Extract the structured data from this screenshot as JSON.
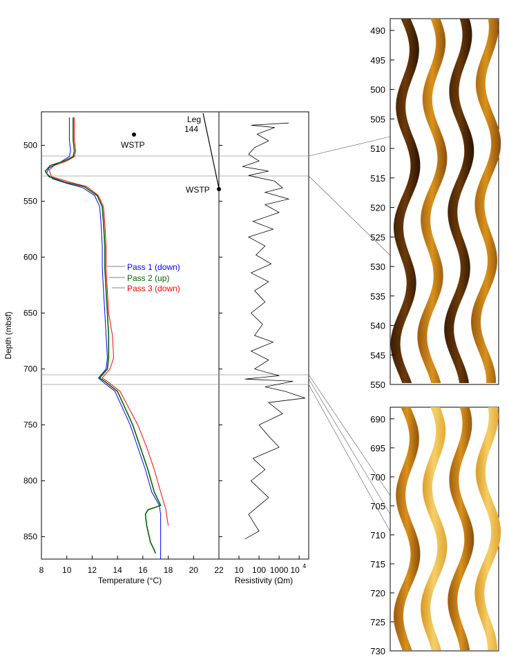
{
  "chart_data": [
    {
      "type": "line",
      "panel": "temperature",
      "xlabel": "Temperature (°C)",
      "ylabel": "Depth (mbsf)",
      "xlim": [
        8,
        22
      ],
      "ylim": [
        870,
        470
      ],
      "x_ticks": [
        "8",
        "10",
        "12",
        "14",
        "16",
        "18",
        "20",
        "22"
      ],
      "y_ticks": [
        "500",
        "550",
        "600",
        "650",
        "700",
        "750",
        "800",
        "850"
      ],
      "series": [
        {
          "name": "Pass 1 (down)",
          "color": "#0000ff",
          "points": [
            [
              10.2,
              475
            ],
            [
              10.2,
              485
            ],
            [
              10.2,
              495
            ],
            [
              10.3,
              505
            ],
            [
              10.2,
              510
            ],
            [
              9.5,
              515
            ],
            [
              8.6,
              520
            ],
            [
              8.4,
              525
            ],
            [
              8.9,
              530
            ],
            [
              10.0,
              534
            ],
            [
              11.3,
              538
            ],
            [
              12.2,
              545
            ],
            [
              12.6,
              555
            ],
            [
              12.7,
              570
            ],
            [
              12.8,
              590
            ],
            [
              12.8,
              610
            ],
            [
              12.9,
              630
            ],
            [
              13.0,
              650
            ],
            [
              13.1,
              670
            ],
            [
              13.2,
              690
            ],
            [
              13.1,
              700
            ],
            [
              12.5,
              708
            ],
            [
              12.9,
              712
            ],
            [
              13.8,
              720
            ],
            [
              14.4,
              735
            ],
            [
              15.0,
              750
            ],
            [
              15.6,
              770
            ],
            [
              16.2,
              790
            ],
            [
              16.7,
              810
            ],
            [
              17.3,
              822
            ],
            [
              17.4,
              830
            ],
            [
              17.4,
              850
            ],
            [
              17.4,
              870
            ]
          ]
        },
        {
          "name": "Pass 2 (up)",
          "color": "#006400",
          "points": [
            [
              10.5,
              475
            ],
            [
              10.5,
              485
            ],
            [
              10.5,
              495
            ],
            [
              10.6,
              505
            ],
            [
              10.5,
              510
            ],
            [
              9.8,
              514
            ],
            [
              8.7,
              518
            ],
            [
              8.3,
              523
            ],
            [
              8.6,
              528
            ],
            [
              9.9,
              533
            ],
            [
              11.4,
              537
            ],
            [
              12.4,
              545
            ],
            [
              12.8,
              555
            ],
            [
              12.9,
              570
            ],
            [
              13.0,
              590
            ],
            [
              13.0,
              610
            ],
            [
              13.1,
              630
            ],
            [
              13.2,
              650
            ],
            [
              13.3,
              670
            ],
            [
              13.3,
              690
            ],
            [
              13.2,
              700
            ],
            [
              12.6,
              708
            ],
            [
              13.1,
              712
            ],
            [
              14.0,
              720
            ],
            [
              14.6,
              735
            ],
            [
              15.2,
              750
            ],
            [
              15.8,
              770
            ],
            [
              16.4,
              790
            ],
            [
              16.9,
              810
            ],
            [
              17.4,
              822
            ],
            [
              16.4,
              826
            ],
            [
              16.2,
              830
            ],
            [
              16.3,
              840
            ],
            [
              16.6,
              855
            ],
            [
              16.9,
              862
            ],
            [
              17.0,
              865
            ]
          ]
        },
        {
          "name": "Pass 3 (down)",
          "color": "#ff0000",
          "points": [
            [
              10.6,
              475
            ],
            [
              10.6,
              485
            ],
            [
              10.6,
              495
            ],
            [
              10.7,
              505
            ],
            [
              10.6,
              510
            ],
            [
              10.0,
              514
            ],
            [
              9.0,
              518
            ],
            [
              8.6,
              522
            ],
            [
              8.8,
              528
            ],
            [
              10.3,
              533
            ],
            [
              11.6,
              537
            ],
            [
              12.5,
              545
            ],
            [
              12.9,
              555
            ],
            [
              13.0,
              570
            ],
            [
              13.1,
              590
            ],
            [
              13.1,
              610
            ],
            [
              13.2,
              630
            ],
            [
              13.3,
              650
            ],
            [
              13.6,
              670
            ],
            [
              13.7,
              690
            ],
            [
              13.4,
              700
            ],
            [
              12.8,
              708
            ],
            [
              13.3,
              712
            ],
            [
              14.2,
              720
            ],
            [
              14.9,
              735
            ],
            [
              15.6,
              750
            ],
            [
              16.3,
              770
            ],
            [
              16.9,
              790
            ],
            [
              17.4,
              810
            ],
            [
              17.8,
              825
            ],
            [
              18.0,
              840
            ]
          ]
        }
      ],
      "annotations": [
        {
          "label": "WSTP",
          "x": 15.3,
          "y": 490
        }
      ]
    },
    {
      "type": "line",
      "panel": "resistivity",
      "xlabel": "Resistivity (Ωm)",
      "x_scale": "log",
      "xlim": [
        1,
        30000
      ],
      "x_ticks": [
        "10",
        "100",
        "1000"
      ],
      "x_tick_10_4": {
        "base": "10",
        "exp": "4"
      },
      "ylim": [
        870,
        470
      ],
      "series": [
        {
          "color": "#000000",
          "points": [
            [
              3000,
              480
            ],
            [
              40,
              482
            ],
            [
              600,
              484
            ],
            [
              80,
              490
            ],
            [
              300,
              496
            ],
            [
              60,
              502
            ],
            [
              30,
              508
            ],
            [
              100,
              514
            ],
            [
              15,
              519
            ],
            [
              300,
              523
            ],
            [
              30,
              527
            ],
            [
              600,
              532
            ],
            [
              1500,
              538
            ],
            [
              200,
              542
            ],
            [
              3000,
              548
            ],
            [
              200,
              553
            ],
            [
              1000,
              560
            ],
            [
              50,
              568
            ],
            [
              500,
              575
            ],
            [
              30,
              582
            ],
            [
              200,
              590
            ],
            [
              70,
              598
            ],
            [
              400,
              606
            ],
            [
              40,
              614
            ],
            [
              300,
              622
            ],
            [
              60,
              630
            ],
            [
              200,
              640
            ],
            [
              40,
              650
            ],
            [
              150,
              660
            ],
            [
              60,
              670
            ],
            [
              500,
              676
            ],
            [
              40,
              684
            ],
            [
              300,
              692
            ],
            [
              60,
              700
            ],
            [
              1000,
              706
            ],
            [
              20,
              709
            ],
            [
              5000,
              711
            ],
            [
              200,
              716
            ],
            [
              2000,
              720
            ],
            [
              20000,
              726
            ],
            [
              300,
              730
            ],
            [
              1500,
              740
            ],
            [
              100,
              750
            ],
            [
              300,
              760
            ],
            [
              1000,
              770
            ],
            [
              50,
              780
            ],
            [
              200,
              790
            ],
            [
              40,
              800
            ],
            [
              300,
              815
            ],
            [
              30,
              830
            ],
            [
              100,
              845
            ],
            [
              20,
              852
            ]
          ]
        }
      ],
      "annotations": [
        {
          "label": "Leg\n144"
        },
        {
          "label": "WSTP"
        }
      ]
    },
    {
      "type": "image_log",
      "panel": "fms-upper",
      "ylim": [
        488,
        550
      ],
      "y_ticks": [
        "490",
        "495",
        "500",
        "505",
        "510",
        "515",
        "520",
        "525",
        "530",
        "535",
        "540",
        "545",
        "550"
      ]
    },
    {
      "type": "image_log",
      "panel": "fms-lower",
      "ylim": [
        688,
        730
      ],
      "y_ticks": [
        "690",
        "695",
        "700",
        "705",
        "710",
        "715",
        "720",
        "725",
        "730"
      ]
    }
  ]
}
